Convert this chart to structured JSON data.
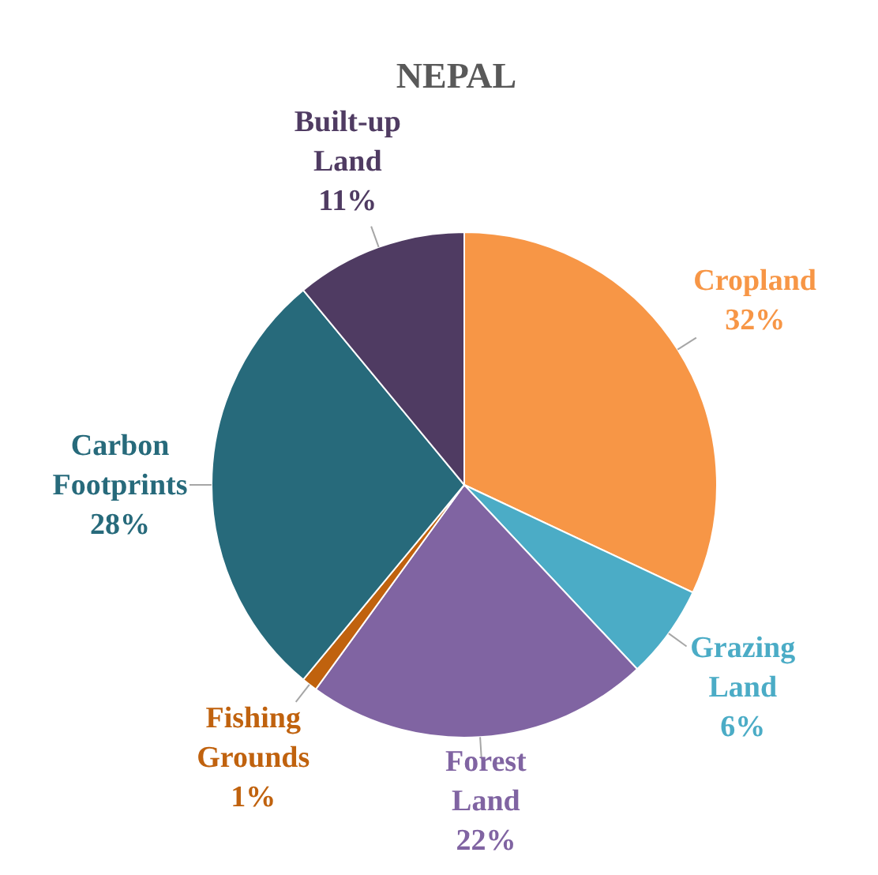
{
  "chart_data": {
    "type": "pie",
    "title": "NEPAL",
    "categories": [
      "Cropland",
      "Grazing Land",
      "Forest Land",
      "Fishing Grounds",
      "Carbon Footprints",
      "Built-up Land"
    ],
    "values": [
      32,
      6,
      22,
      1,
      28,
      11
    ],
    "value_labels": [
      "32%",
      "6%",
      "22%",
      "1%",
      "28%",
      "11%"
    ],
    "colors": [
      "#f79646",
      "#4bacc6",
      "#8064a2",
      "#c0620e",
      "#276a7b",
      "#4f3b62"
    ]
  }
}
